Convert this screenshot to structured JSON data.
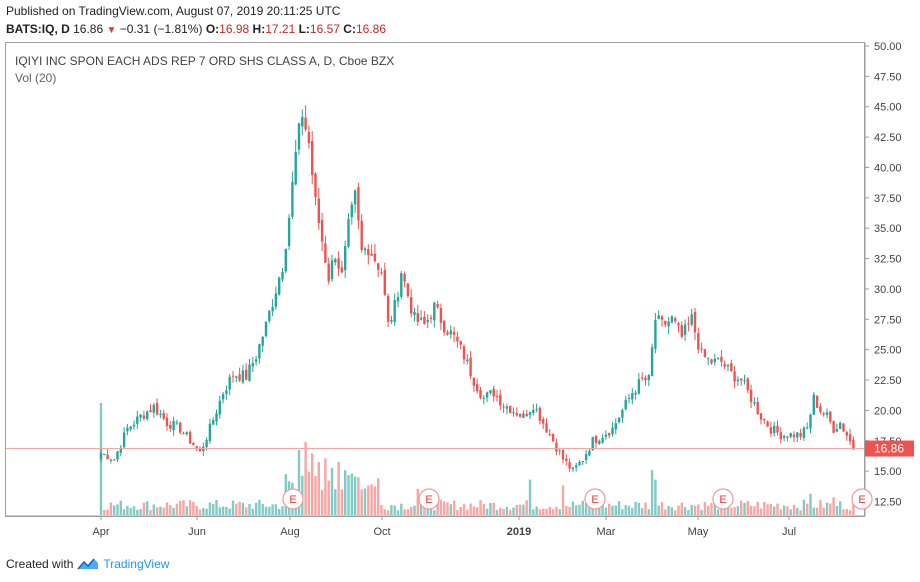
{
  "header": {
    "published": "Published on TradingView.com, August 07, 2019 20:11:25 UTC",
    "symbol": "BATS:IQ, D",
    "last": "16.86",
    "change": "−0.31 (−1.81%)",
    "o_label": "O:",
    "o_value": "16.98",
    "h_label": "H:",
    "h_value": "17.21",
    "l_label": "L:",
    "l_value": "16.57",
    "c_label": "C:",
    "c_value": "16.86"
  },
  "title": "IQIYI INC SPON EACH ADS REP 7 ORD SHS CLASS A, D, Cboe BZX",
  "volume_label": "Vol (20)",
  "footer": {
    "created": "Created with",
    "brand": "TradingView"
  },
  "colors": {
    "up": "#26a69a",
    "down": "#ef5350",
    "up_vol": "#80cbc4",
    "down_vol": "#f8a5a3",
    "price_line": "#f8a5a3",
    "price_tag": "#ef5350"
  },
  "chart_data": {
    "type": "candlestick",
    "x_tick_labels": [
      "Apr",
      "Jun",
      "Aug",
      "Oct",
      "2019",
      "Mar",
      "May",
      "Jul"
    ],
    "y_tick_labels": [
      "50.00",
      "47.50",
      "45.00",
      "42.50",
      "40.00",
      "37.50",
      "35.00",
      "32.50",
      "30.00",
      "27.50",
      "25.00",
      "22.50",
      "20.00",
      "17.50",
      "15.00",
      "12.50"
    ],
    "ylim": [
      11.0,
      50.2
    ],
    "last_price_label": "16.86",
    "earnings_marker": "E",
    "earnings_x": [
      "Aug",
      "Nov",
      "Feb",
      "May",
      "Aug"
    ],
    "price_path": [
      [
        0,
        16.5
      ],
      [
        4,
        16.0
      ],
      [
        8,
        18.5
      ],
      [
        12,
        19.5
      ],
      [
        16,
        20.3
      ],
      [
        20,
        19.0
      ],
      [
        24,
        18.5
      ],
      [
        28,
        17.2
      ],
      [
        30,
        16.5
      ],
      [
        33,
        18.5
      ],
      [
        37,
        21.5
      ],
      [
        40,
        23.0
      ],
      [
        44,
        22.8
      ],
      [
        47,
        24.5
      ],
      [
        50,
        27.0
      ],
      [
        53,
        30.0
      ],
      [
        55,
        32.0
      ],
      [
        57,
        36.0
      ],
      [
        59,
        41.0
      ],
      [
        61,
        44.5
      ],
      [
        63,
        42.0
      ],
      [
        65,
        37.0
      ],
      [
        67,
        34.0
      ],
      [
        69,
        31.0
      ],
      [
        71,
        33.0
      ],
      [
        73,
        31.0
      ],
      [
        75,
        35.0
      ],
      [
        77,
        37.5
      ],
      [
        79,
        33.0
      ],
      [
        81,
        33.5
      ],
      [
        83,
        32.5
      ],
      [
        85,
        31.5
      ],
      [
        87,
        27.0
      ],
      [
        89,
        28.5
      ],
      [
        91,
        31.5
      ],
      [
        93,
        29.5
      ],
      [
        95,
        27.5
      ],
      [
        98,
        27.0
      ],
      [
        101,
        28.5
      ],
      [
        104,
        27.0
      ],
      [
        107,
        26.0
      ],
      [
        110,
        24.5
      ],
      [
        113,
        22.5
      ],
      [
        116,
        21.0
      ],
      [
        119,
        21.5
      ],
      [
        122,
        20.5
      ],
      [
        125,
        20.0
      ],
      [
        128,
        19.5
      ],
      [
        131,
        20.5
      ],
      [
        134,
        19.0
      ],
      [
        137,
        17.5
      ],
      [
        140,
        16.0
      ],
      [
        143,
        15.0
      ],
      [
        146,
        16.0
      ],
      [
        149,
        17.5
      ],
      [
        152,
        18.0
      ],
      [
        155,
        18.5
      ],
      [
        158,
        20.0
      ],
      [
        161,
        21.5
      ],
      [
        164,
        22.5
      ],
      [
        166,
        22.5
      ],
      [
        168,
        27.5
      ],
      [
        170,
        27.0
      ],
      [
        173,
        27.5
      ],
      [
        176,
        26.0
      ],
      [
        179,
        27.5
      ],
      [
        182,
        24.5
      ],
      [
        185,
        24.0
      ],
      [
        188,
        24.0
      ],
      [
        191,
        23.0
      ],
      [
        194,
        22.5
      ],
      [
        197,
        21.0
      ],
      [
        200,
        19.5
      ],
      [
        203,
        18.5
      ],
      [
        206,
        18.0
      ],
      [
        209,
        18.0
      ],
      [
        212,
        18.0
      ],
      [
        214,
        18.5
      ],
      [
        216,
        21.0
      ],
      [
        218,
        20.0
      ],
      [
        220,
        19.5
      ],
      [
        222,
        18.5
      ],
      [
        224,
        19.0
      ],
      [
        226,
        18.0
      ],
      [
        228,
        16.9
      ]
    ],
    "volume_spikes": [
      [
        0,
        0.95
      ],
      [
        60,
        0.55
      ],
      [
        62,
        0.62
      ],
      [
        64,
        0.52
      ],
      [
        66,
        0.45
      ],
      [
        68,
        0.48
      ],
      [
        70,
        0.4
      ],
      [
        72,
        0.45
      ],
      [
        74,
        0.38
      ],
      [
        76,
        0.35
      ],
      [
        78,
        0.32
      ],
      [
        96,
        0.22
      ],
      [
        130,
        0.3
      ],
      [
        140,
        0.25
      ],
      [
        167,
        0.38
      ],
      [
        168,
        0.3
      ],
      [
        215,
        0.18
      ],
      [
        222,
        0.15
      ]
    ]
  }
}
